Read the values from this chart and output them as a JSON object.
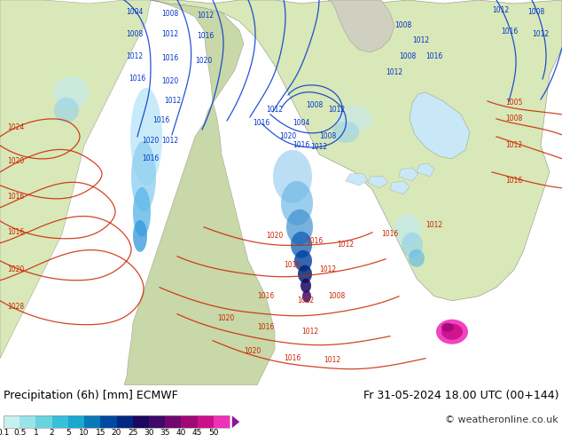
{
  "title_left": "Precipitation (6h) [mm] ECMWF",
  "title_right": "Fr 31-05-2024 18.00 UTC (00+144)",
  "copyright": "© weatheronline.co.uk",
  "colorbar_tick_labels": [
    "0.1",
    "0.5",
    "1",
    "2",
    "5",
    "10",
    "15",
    "20",
    "25",
    "30",
    "35",
    "40",
    "45",
    "50"
  ],
  "colorbar_colors": [
    "#c8f0f0",
    "#98e4e8",
    "#68d4e0",
    "#38c0d8",
    "#18a8d0",
    "#0878b8",
    "#0048a0",
    "#002880",
    "#180860",
    "#400868",
    "#700870",
    "#a00878",
    "#cc1088",
    "#f030b8"
  ],
  "ocean_color": "#c8e8f8",
  "land_color_green": "#d8e8b8",
  "land_color_light": "#e8eec8",
  "fig_bg_color": "#ffffff",
  "map_bg": "#c8dff0"
}
